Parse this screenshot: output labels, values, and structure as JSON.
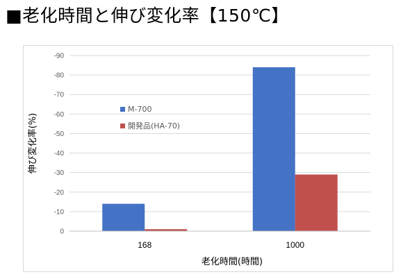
{
  "title": "■老化時間と伸び変化率【150℃】",
  "chart_data": {
    "type": "bar",
    "categories": [
      "168",
      "1000"
    ],
    "series": [
      {
        "name": "M-700",
        "values": [
          -14,
          -84
        ],
        "color": "#4472c4"
      },
      {
        "name": "開発品(HA-70)",
        "values": [
          -1,
          -29
        ],
        "color": "#c0504d"
      }
    ],
    "xlabel": "老化時間(時間)",
    "ylabel": "伸び変化率(%)",
    "ylim": [
      0,
      -90
    ],
    "yticks": [
      0,
      -10,
      -20,
      -30,
      -40,
      -50,
      -60,
      -70,
      -80,
      -90
    ],
    "ytick_labels": [
      "0",
      "-10",
      "-20",
      "-30",
      "-40",
      "-50",
      "-60",
      "-70",
      "-80",
      "-90"
    ],
    "y_inverted": true,
    "grid": true,
    "legend_position": "inside-left"
  }
}
